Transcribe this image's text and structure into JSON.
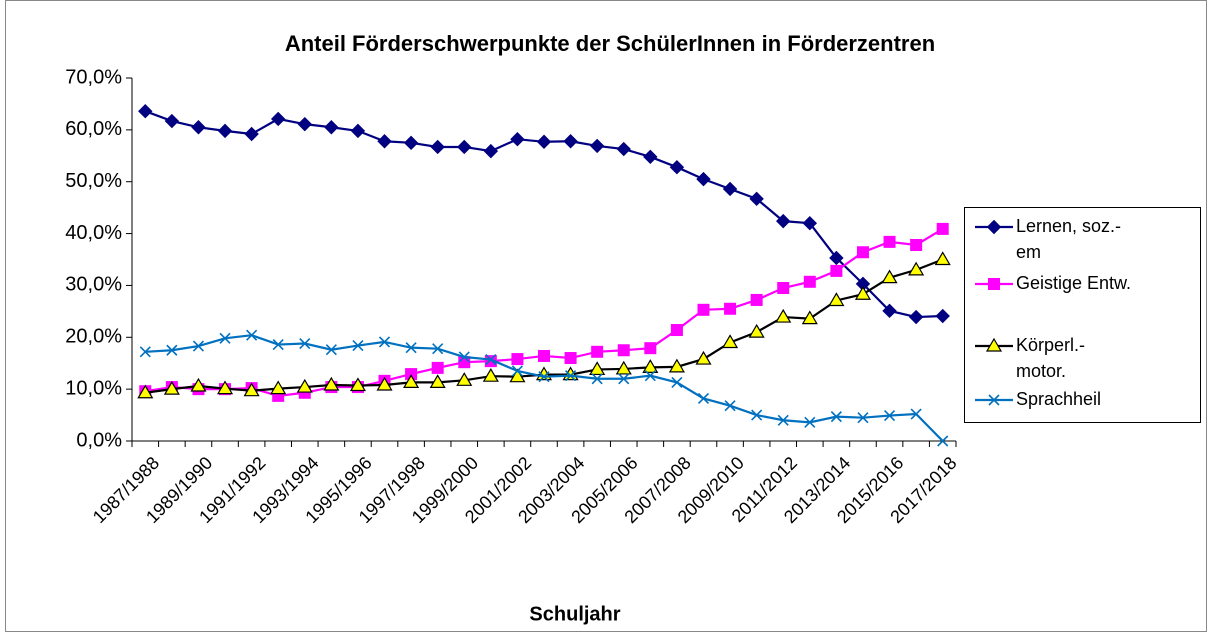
{
  "chart_data": {
    "type": "line",
    "title": "Anteil Förderschwerpunkte der SchülerInnen in Förderzentren",
    "x_label": "Schuljahr",
    "categories": [
      "1987/1988",
      null,
      "1989/1990",
      null,
      "1991/1992",
      null,
      "1993/1994",
      null,
      "1995/1996",
      null,
      "1997/1998",
      null,
      "1999/2000",
      null,
      "2001/2002",
      null,
      "2003/2004",
      null,
      "2005/2006",
      null,
      "2007/2008",
      null,
      "2009/2010",
      null,
      "2011/2012",
      null,
      "2013/2014",
      null,
      "2015/2016",
      null,
      "2017/2018"
    ],
    "ylim": [
      0,
      70
    ],
    "yticks": [
      {
        "value": 0,
        "label": "0,0%"
      },
      {
        "value": 10,
        "label": "10,0%"
      },
      {
        "value": 20,
        "label": "20,0%"
      },
      {
        "value": 30,
        "label": "30,0%"
      },
      {
        "value": 40,
        "label": "40,0%"
      },
      {
        "value": 50,
        "label": "50,0%"
      },
      {
        "value": 60,
        "label": "60,0%"
      },
      {
        "value": 70,
        "label": "70,0%"
      }
    ],
    "grid": false,
    "legend": "right",
    "series": [
      {
        "name": "Lernen, soz.-\nem",
        "color": "#000080",
        "marker": "diamond",
        "values": [
          63.6,
          61.7,
          60.5,
          59.8,
          59.2,
          62.1,
          61.1,
          60.5,
          59.8,
          57.8,
          57.5,
          56.7,
          56.7,
          55.9,
          58.2,
          57.7,
          57.8,
          56.9,
          56.3,
          54.8,
          52.8,
          50.5,
          48.6,
          46.7,
          42.4,
          42.0,
          35.3,
          30.3,
          25.1,
          23.9,
          24.1
        ]
      },
      {
        "name": "Geistige Entw.",
        "color": "#ff00ff",
        "marker": "square",
        "values": [
          9.6,
          10.4,
          10.0,
          10.0,
          10.2,
          8.7,
          9.3,
          10.4,
          10.4,
          11.6,
          12.9,
          14.1,
          15.2,
          15.4,
          15.8,
          16.4,
          16.0,
          17.2,
          17.5,
          17.9,
          21.4,
          25.3,
          25.5,
          27.2,
          29.5,
          30.7,
          32.8,
          36.4,
          38.4,
          37.8,
          40.9
        ]
      },
      {
        "name": "Körperl.-\nmotor.",
        "color": "#000000",
        "marker": "triangle",
        "values": [
          9.3,
          10.0,
          10.6,
          10.1,
          9.7,
          10.1,
          10.4,
          10.8,
          10.7,
          10.8,
          11.3,
          11.3,
          11.7,
          12.5,
          12.4,
          12.8,
          12.8,
          13.8,
          13.9,
          14.2,
          14.3,
          15.8,
          19.0,
          21.0,
          23.9,
          23.6,
          27.1,
          28.3,
          31.5,
          33.0,
          35.0
        ]
      },
      {
        "name": "Sprachheil",
        "color": "#0070c0",
        "marker": "x",
        "values": [
          17.2,
          17.5,
          18.3,
          19.8,
          20.4,
          18.6,
          18.8,
          17.6,
          18.4,
          19.1,
          18.0,
          17.8,
          16.2,
          15.7,
          13.5,
          12.4,
          12.6,
          12.0,
          12.0,
          12.6,
          11.3,
          8.2,
          6.8,
          5.0,
          4.0,
          3.6,
          4.7,
          4.5,
          4.9,
          5.2,
          0.0
        ]
      }
    ]
  }
}
